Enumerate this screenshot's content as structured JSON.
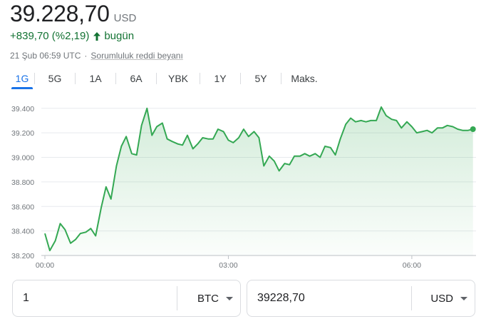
{
  "quote": {
    "price": "39.228,70",
    "currency": "USD",
    "change": "+839,70 (%2,19)",
    "period": "bugün",
    "timestamp": "21 Şub 06:59 UTC",
    "separator": "·",
    "disclaimer": "Sorumluluk reddi beyanı",
    "accent_color": "#137333"
  },
  "tabs": [
    {
      "label": "1G",
      "active": true
    },
    {
      "label": "5G"
    },
    {
      "label": "1A"
    },
    {
      "label": "6A"
    },
    {
      "label": "YBK"
    },
    {
      "label": "1Y"
    },
    {
      "label": "5Y"
    },
    {
      "label": "Maks."
    }
  ],
  "chart_data": {
    "type": "area",
    "x_ticks": [
      "00:00",
      "03:00",
      "06:00"
    ],
    "y_ticks": [
      "38.200",
      "38.400",
      "38.600",
      "38.800",
      "39.000",
      "39.200",
      "39.400"
    ],
    "ylim": [
      38200,
      39480
    ],
    "xlim_hours": [
      0,
      7.05
    ],
    "line_color": "#34a853",
    "grid": "horizontal",
    "series": [
      {
        "x": [
          0,
          0.08,
          0.17,
          0.25,
          0.33,
          0.42,
          0.5,
          0.58,
          0.67,
          0.75,
          0.83,
          0.92,
          1.0,
          1.08,
          1.17,
          1.25,
          1.33,
          1.42,
          1.5,
          1.58,
          1.67,
          1.75,
          1.83,
          1.92,
          2.0,
          2.08,
          2.17,
          2.25,
          2.33,
          2.42,
          2.5,
          2.58,
          2.67,
          2.75,
          2.83,
          2.92,
          3.0,
          3.08,
          3.17,
          3.25,
          3.33,
          3.42,
          3.5,
          3.58,
          3.67,
          3.75,
          3.83,
          3.92,
          4.0,
          4.08,
          4.17,
          4.25,
          4.33,
          4.42,
          4.5,
          4.58,
          4.67,
          4.75,
          4.83,
          4.92,
          5.0,
          5.08,
          5.17,
          5.25,
          5.33,
          5.42,
          5.5,
          5.58,
          5.67,
          5.75,
          5.83,
          5.92,
          6.0,
          6.08,
          6.17,
          6.25,
          6.33,
          6.42,
          6.5,
          6.58,
          6.67,
          6.75,
          6.83,
          6.92,
          7.0
        ],
        "values": [
          38380,
          38240,
          38320,
          38460,
          38410,
          38300,
          38330,
          38380,
          38390,
          38420,
          38360,
          38590,
          38760,
          38660,
          38930,
          39090,
          39170,
          39030,
          39020,
          39260,
          39400,
          39180,
          39250,
          39280,
          39150,
          39130,
          39110,
          39100,
          39180,
          39070,
          39110,
          39160,
          39150,
          39150,
          39230,
          39210,
          39140,
          39120,
          39160,
          39230,
          39170,
          39210,
          39160,
          38930,
          39010,
          38970,
          38890,
          38950,
          38940,
          39010,
          39010,
          39030,
          39010,
          39030,
          39000,
          39090,
          39080,
          39020,
          39150,
          39270,
          39320,
          39290,
          39300,
          39290,
          39300,
          39300,
          39410,
          39340,
          39310,
          39300,
          39240,
          39290,
          39250,
          39200,
          39210,
          39220,
          39200,
          39240,
          39240,
          39260,
          39250,
          39230,
          39220,
          39220,
          39230
        ]
      }
    ]
  },
  "converter": {
    "left": {
      "value": "1",
      "currency": "BTC"
    },
    "right": {
      "value": "39228,70",
      "currency": "USD"
    }
  }
}
